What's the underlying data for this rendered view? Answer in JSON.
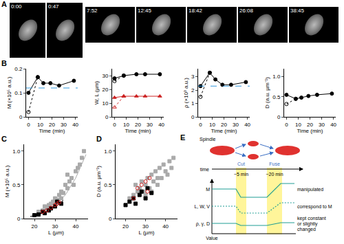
{
  "letters": [
    "A",
    "B",
    "C",
    "D",
    "E"
  ],
  "panel_A": {
    "times": [
      "0:00",
      "0:47",
      "7:52",
      "12:45",
      "18:42",
      "26:08",
      "38:45"
    ]
  },
  "chart_data": [
    {
      "type": "line",
      "xlabel": "Time (min)",
      "ylabel": "M (×10⁵ a.u.)",
      "grid": false,
      "xlim": [
        -2,
        42
      ],
      "xticks": [
        0,
        10,
        20,
        30,
        40
      ],
      "ylim": [
        0,
        0.2
      ],
      "yticks": [
        0,
        0.1,
        0.2
      ],
      "series": [
        {
          "x": [
            0,
            7.9
          ],
          "values": [
            0.02,
            0.165
          ],
          "color": "#000000",
          "marker": "circle-open",
          "line_style": "dotted"
        },
        {
          "x": [
            0,
            7.9,
            12.7,
            18.7,
            26.1,
            38.7
          ],
          "values": [
            0.1,
            0.165,
            0.14,
            0.14,
            0.13,
            0.15
          ],
          "color": "#000000",
          "marker": "circle",
          "line_style": "solid"
        },
        {
          "x": [
            -2,
            42
          ],
          "values": [
            0.12,
            0.12
          ],
          "color": "#3399dd",
          "marker": "none",
          "line_style": "dashed"
        }
      ]
    },
    {
      "type": "line",
      "xlabel": "Time (min)",
      "ylabel": "W, L (µm)",
      "grid": false,
      "xlim": [
        -2,
        42
      ],
      "xticks": [
        0,
        10,
        20,
        30,
        40
      ],
      "ylim": [
        0,
        35
      ],
      "yticks": [
        0,
        10,
        20,
        30
      ],
      "series": [
        {
          "x": [
            0,
            7.9
          ],
          "values": [
            26,
            30
          ],
          "color": "#000000",
          "marker": "circle-open",
          "line_style": "dotted"
        },
        {
          "x": [
            0,
            7.9,
            18.7,
            26.1,
            38.7
          ],
          "values": [
            28,
            30,
            31,
            31,
            31
          ],
          "color": "#000000",
          "marker": "circle",
          "line_style": "solid"
        },
        {
          "x": [
            0,
            7.9
          ],
          "values": [
            7,
            15
          ],
          "color": "#cc2222",
          "marker": "triangle-up-open",
          "line_style": "dotted"
        },
        {
          "x": [
            0,
            7.9,
            18.7,
            26.1,
            38.7
          ],
          "values": [
            14,
            15,
            15,
            15,
            15
          ],
          "color": "#cc2222",
          "marker": "triangle-up",
          "line_style": "solid"
        }
      ]
    },
    {
      "type": "line",
      "xlabel": "Time (min)",
      "ylabel": "ρ (×10³ a.u.)",
      "grid": false,
      "xlim": [
        -2,
        42
      ],
      "xticks": [
        0,
        10,
        20,
        30,
        40
      ],
      "ylim": [
        0,
        3.6
      ],
      "yticks": [
        0,
        1,
        2,
        3
      ],
      "series": [
        {
          "x": [
            0,
            7.9
          ],
          "values": [
            1.5,
            3.3
          ],
          "color": "#000000",
          "marker": "circle-open",
          "line_style": "dotted"
        },
        {
          "x": [
            0,
            7.9,
            12.7,
            18.7,
            26.1,
            38.7
          ],
          "values": [
            2.3,
            3.3,
            2.8,
            2.4,
            2.4,
            2.6
          ],
          "color": "#000000",
          "marker": "circle",
          "line_style": "solid"
        },
        {
          "x": [
            -2,
            42
          ],
          "values": [
            2.3,
            2.3
          ],
          "color": "#3399dd",
          "marker": "none",
          "line_style": "dashed"
        }
      ]
    },
    {
      "type": "line",
      "xlabel": "Time (min)",
      "ylabel": "D (a.u. µm⁻¹)",
      "grid": false,
      "xlim": [
        -2,
        42
      ],
      "xticks": [
        0,
        10,
        20,
        30,
        40
      ],
      "ylim": [
        0,
        1.2
      ],
      "yticks": [
        0,
        0.5,
        {
          "value": 1,
          "label": "1.0"
        }
      ],
      "series": [
        {
          "x": [
            0,
            7.9
          ],
          "values": [
            0.32,
            0.45
          ],
          "color": "#000000",
          "marker": "circle-open",
          "line_style": "dotted"
        },
        {
          "x": [
            0,
            7.9,
            12.7,
            18.7,
            26.1,
            38.7
          ],
          "values": [
            0.55,
            0.45,
            0.48,
            0.52,
            0.55,
            0.58
          ],
          "color": "#000000",
          "marker": "circle",
          "line_style": "solid"
        }
      ]
    },
    {
      "type": "scatter",
      "xlabel": "L (µm)",
      "ylabel": "M (×10⁵ a.u.)",
      "grid": false,
      "xlim": [
        15,
        46
      ],
      "xticks": [
        20,
        30,
        40
      ],
      "ylim": [
        0,
        1.1
      ],
      "yticks": [
        0,
        0.5,
        {
          "value": 1,
          "label": "1.0"
        }
      ],
      "series": [
        {
          "x": [
            22,
            24,
            25,
            26,
            27,
            28,
            29,
            30,
            31,
            32,
            33,
            34,
            35,
            36,
            37,
            38,
            39,
            40,
            41,
            42,
            43,
            44,
            36,
            33,
            30
          ],
          "values": [
            0.1,
            0.12,
            0.18,
            0.15,
            0.2,
            0.22,
            0.25,
            0.3,
            0.28,
            0.35,
            0.4,
            0.38,
            0.5,
            0.45,
            0.55,
            0.6,
            0.5,
            0.7,
            0.75,
            0.8,
            0.9,
            1.0,
            0.65,
            0.3,
            0.2
          ],
          "color": "#aaaaaa",
          "marker": "square",
          "line_style": "none"
        },
        {
          "x": [
            20,
            25,
            30,
            35,
            40,
            45
          ],
          "values": [
            0.05,
            0.1,
            0.2,
            0.35,
            0.6,
            0.95
          ],
          "color": "#aaaaaa",
          "marker": "none",
          "line_style": "solid"
        },
        {
          "x": [
            20,
            22,
            24,
            25,
            27,
            28,
            30,
            31,
            33
          ],
          "values": [
            0.05,
            0.06,
            0.1,
            0.08,
            0.12,
            0.15,
            0.18,
            0.25,
            0.22
          ],
          "color": "#000000",
          "marker": "square",
          "line_style": "none"
        },
        {
          "x": [
            18,
            22,
            26,
            30,
            34
          ],
          "values": [
            0.03,
            0.06,
            0.1,
            0.17,
            0.27
          ],
          "color": "#000000",
          "marker": "none",
          "line_style": "solid"
        },
        {
          "x": [
            24,
            26,
            28,
            30,
            31,
            32
          ],
          "values": [
            0.1,
            0.12,
            0.16,
            0.2,
            0.22,
            0.24
          ],
          "color": "#cc2222",
          "marker": "circle-open",
          "line_style": "none"
        }
      ]
    },
    {
      "type": "scatter",
      "xlabel": "L (µm)",
      "ylabel": "D (a.u. µm⁻¹)",
      "grid": false,
      "xlim": [
        15,
        46
      ],
      "xticks": [
        20,
        30,
        40
      ],
      "ylim": [
        0,
        1.1
      ],
      "yticks": [
        0,
        0.5,
        {
          "value": 1,
          "label": "1.0"
        }
      ],
      "series": [
        {
          "x": [
            22,
            24,
            25,
            26,
            27,
            28,
            29,
            30,
            31,
            32,
            33,
            34,
            35,
            36,
            37,
            38,
            39,
            40,
            41,
            42,
            43,
            44,
            36,
            33,
            30
          ],
          "values": [
            0.3,
            0.35,
            0.5,
            0.4,
            0.45,
            0.55,
            0.4,
            0.5,
            0.6,
            0.45,
            0.65,
            0.55,
            0.7,
            0.5,
            0.75,
            0.6,
            0.8,
            0.7,
            0.65,
            0.85,
            0.75,
            0.9,
            0.6,
            0.4,
            0.35
          ],
          "color": "#aaaaaa",
          "marker": "square",
          "line_style": "none"
        },
        {
          "x": [
            20,
            22,
            24,
            25,
            27,
            28,
            30,
            31,
            33
          ],
          "values": [
            0.2,
            0.25,
            0.3,
            0.22,
            0.35,
            0.4,
            0.3,
            0.45,
            0.38
          ],
          "color": "#000000",
          "marker": "square",
          "line_style": "none"
        },
        {
          "x": [
            24,
            26,
            28,
            30,
            31,
            32
          ],
          "values": [
            0.3,
            0.45,
            0.5,
            0.55,
            0.4,
            0.6
          ],
          "color": "#cc2222",
          "marker": "circle-open",
          "line_style": "none"
        }
      ]
    }
  ],
  "panel_E": {
    "spindle_label": "Spindle",
    "cut_label": "Cut",
    "fuse_label": "Fuse",
    "time_label": "time",
    "durations": [
      "~5 min",
      "~20 min"
    ],
    "rows": [
      {
        "label": "M",
        "description": "manipulated"
      },
      {
        "label": "L, W, V",
        "description": "correspond to M"
      },
      {
        "label": "ρ, γ, D",
        "description": "kept constant or slightly changed"
      }
    ],
    "axis_label": "Value"
  }
}
